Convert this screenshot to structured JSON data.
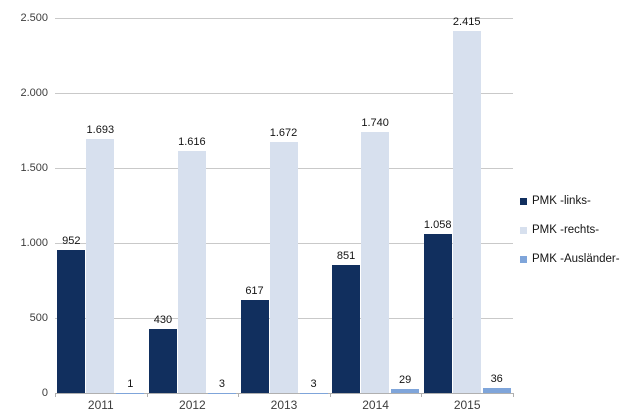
{
  "chart_data": {
    "type": "bar",
    "title": "",
    "xlabel": "",
    "ylabel": "",
    "categories": [
      "2011",
      "2012",
      "2013",
      "2014",
      "2015"
    ],
    "series": [
      {
        "name": "PMK -links-",
        "color": "#112F5E",
        "values": [
          952,
          430,
          617,
          851,
          1058
        ],
        "labels": [
          "952",
          "430",
          "617",
          "851",
          "1.058"
        ]
      },
      {
        "name": "PMK -rechts-",
        "color": "#D7E0EE",
        "values": [
          1693,
          1616,
          1672,
          1740,
          2415
        ],
        "labels": [
          "1.693",
          "1.616",
          "1.672",
          "1.740",
          "2.415"
        ]
      },
      {
        "name": "PMK -Ausländer-",
        "color": "#7FA5DA",
        "values": [
          1,
          3,
          3,
          29,
          36
        ],
        "labels": [
          "1",
          "3",
          "3",
          "29",
          "36"
        ]
      }
    ],
    "ylim": [
      0,
      2500
    ],
    "y_ticks": [
      {
        "value": 0,
        "label": "0"
      },
      {
        "value": 500,
        "label": "500"
      },
      {
        "value": 1000,
        "label": "1.000"
      },
      {
        "value": 1500,
        "label": "1.500"
      },
      {
        "value": 2000,
        "label": "2.000"
      },
      {
        "value": 2500,
        "label": "2.500"
      }
    ],
    "grid": true,
    "legend_position": "right",
    "axis_color": "#b0b0b0",
    "grid_color": "#c9c9c9"
  }
}
